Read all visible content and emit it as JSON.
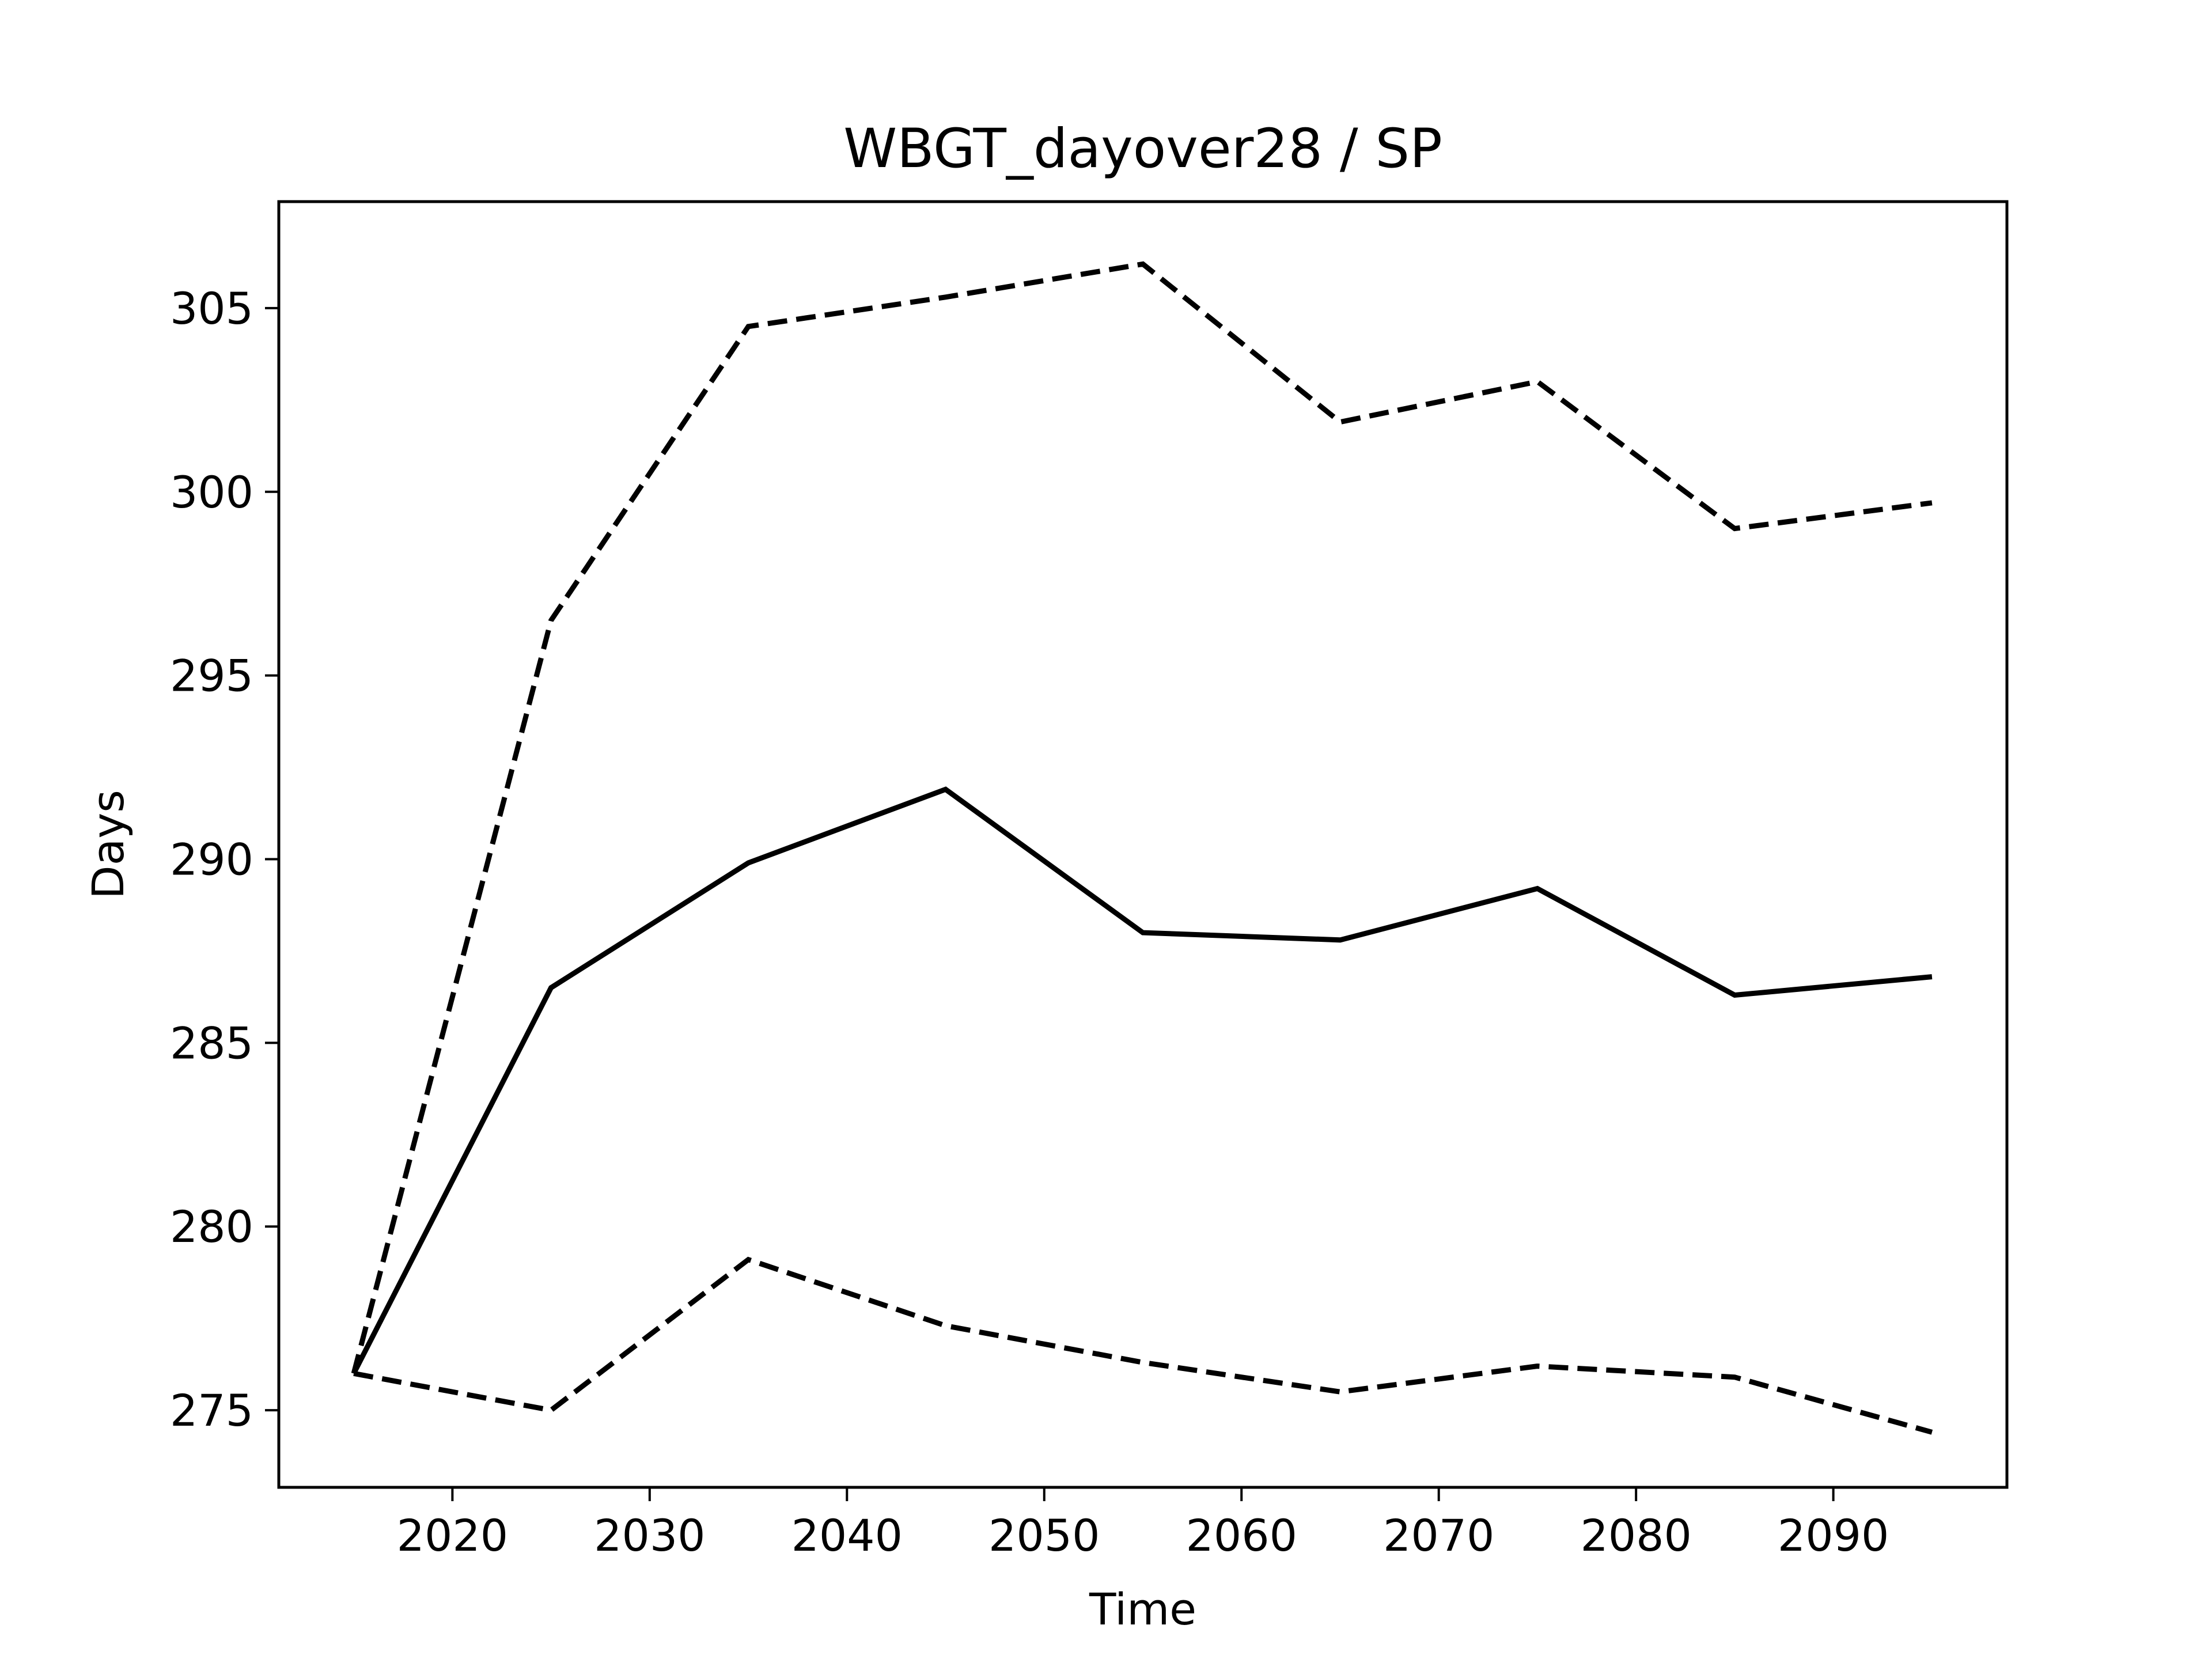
{
  "chart_data": {
    "type": "line",
    "title": "WBGT_dayover28 / SP",
    "xlabel": "Time",
    "ylabel": "Days",
    "xlim": [
      2011.2,
      2098.8
    ],
    "ylim": [
      272.9,
      307.9
    ],
    "xticks": [
      2020,
      2030,
      2040,
      2050,
      2060,
      2070,
      2080,
      2090
    ],
    "yticks": [
      275,
      280,
      285,
      290,
      295,
      300,
      305
    ],
    "grid": false,
    "legend": "none",
    "line_color": "#000000",
    "x": [
      2015,
      2025,
      2035,
      2045,
      2055,
      2065,
      2075,
      2085,
      2095
    ],
    "series": [
      {
        "style": "solid",
        "values": [
          276.0,
          286.5,
          289.9,
          291.9,
          288.0,
          287.8,
          289.2,
          286.3,
          286.8
        ]
      },
      {
        "style": "dashed",
        "values": [
          276.0,
          296.5,
          304.5,
          305.3,
          306.2,
          301.9,
          303.0,
          299.0,
          299.7
        ]
      },
      {
        "style": "dashed",
        "values": [
          276.0,
          275.0,
          279.1,
          277.3,
          276.3,
          275.5,
          276.2,
          275.9,
          274.4
        ]
      }
    ]
  }
}
